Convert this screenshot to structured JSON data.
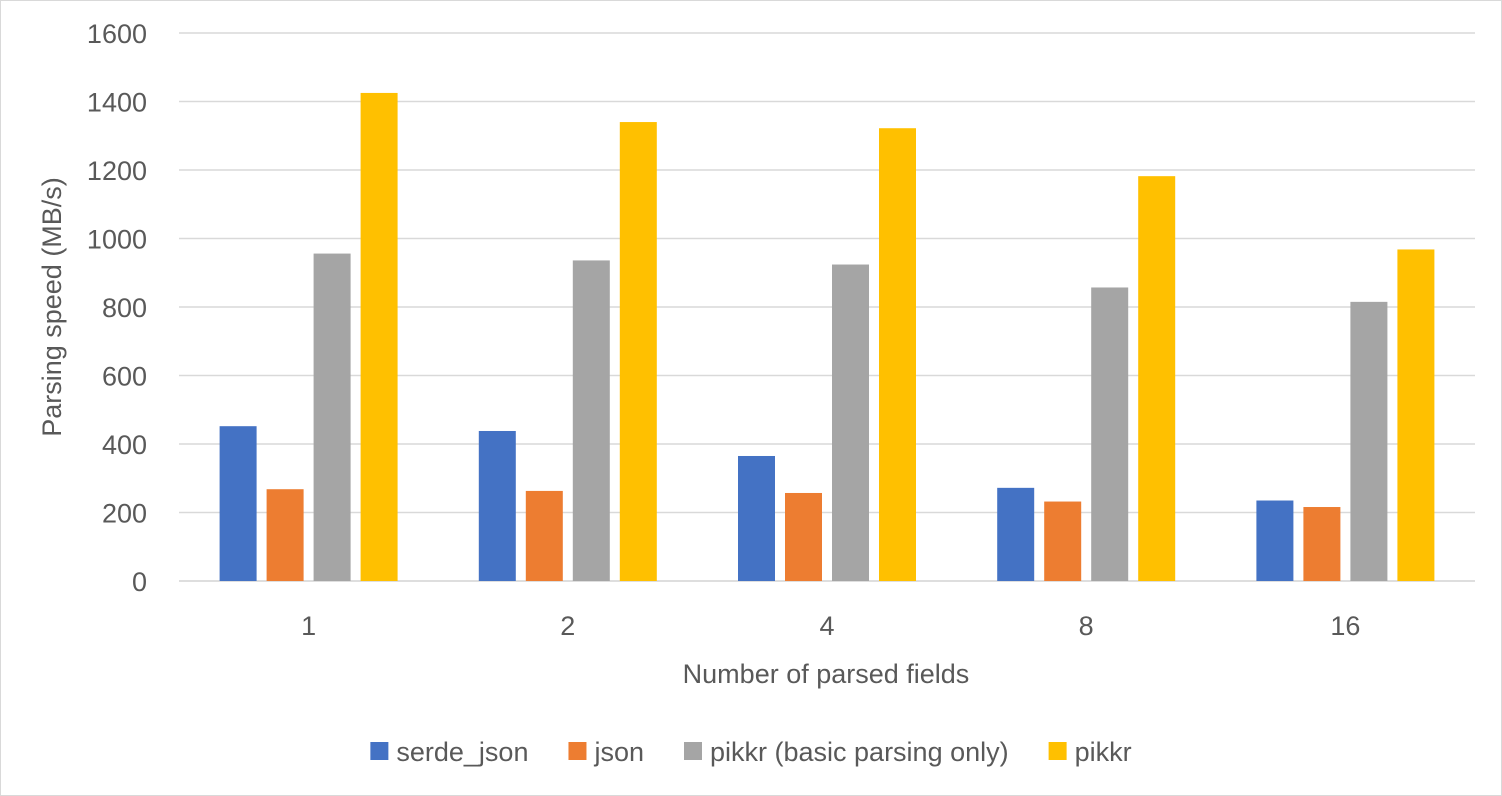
{
  "chart_data": {
    "type": "bar",
    "title": "",
    "xlabel": "Number of parsed fields",
    "ylabel": "Parsing speed (MB/s)",
    "ylim": [
      0,
      1600
    ],
    "yticks": [
      0,
      200,
      400,
      600,
      800,
      1000,
      1200,
      1400,
      1600
    ],
    "categories": [
      "1",
      "2",
      "4",
      "8",
      "16"
    ],
    "grid": true,
    "legend_position": "bottom",
    "series": [
      {
        "name": "serde_json",
        "color": "#4472C4",
        "values": [
          452,
          438,
          365,
          272,
          235
        ]
      },
      {
        "name": "json",
        "color": "#ED7D31",
        "values": [
          268,
          263,
          257,
          232,
          216
        ]
      },
      {
        "name": "pikkr (basic parsing only)",
        "color": "#A5A5A5",
        "values": [
          956,
          936,
          924,
          857,
          815
        ]
      },
      {
        "name": "pikkr",
        "color": "#FFC000",
        "values": [
          1425,
          1340,
          1322,
          1182,
          968
        ]
      }
    ]
  }
}
